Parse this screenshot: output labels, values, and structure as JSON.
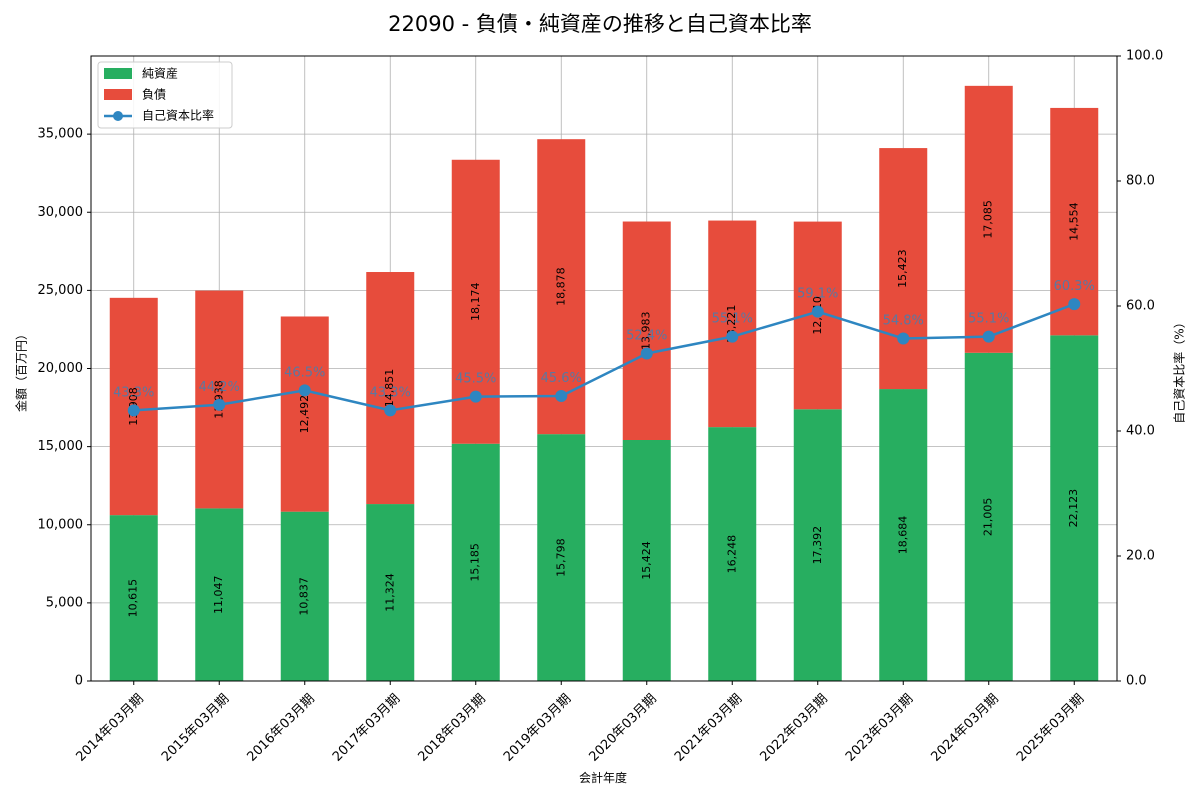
{
  "chart_data": {
    "type": "bar",
    "stacked": true,
    "title": "22090 - 負債・純資産の推移と自己資本比率",
    "xlabel": "会計年度",
    "ylabel": "金額（百万円）",
    "y2label": "自己資本比率（%）",
    "ylim": [
      0,
      40000
    ],
    "y2lim": [
      0,
      100
    ],
    "yticks": [
      0,
      5000,
      10000,
      15000,
      20000,
      25000,
      30000,
      35000
    ],
    "ytick_labels": [
      "0",
      "5,000",
      "10,000",
      "15,000",
      "20,000",
      "25,000",
      "30,000",
      "35,000"
    ],
    "y2ticks": [
      0,
      20,
      40,
      60,
      80,
      100
    ],
    "y2tick_labels": [
      "0.0",
      "20.0",
      "40.0",
      "60.0",
      "80.0",
      "100.0"
    ],
    "grid": true,
    "legend_position": "top-left",
    "categories": [
      "2014年03月期",
      "2015年03月期",
      "2016年03月期",
      "2017年03月期",
      "2018年03月期",
      "2019年03月期",
      "2020年03月期",
      "2021年03月期",
      "2022年03月期",
      "2023年03月期",
      "2024年03月期",
      "2025年03月期"
    ],
    "series": [
      {
        "name": "純資産",
        "kind": "bar",
        "color": "#27ae60",
        "values": [
          10615,
          11047,
          10837,
          11324,
          15185,
          15798,
          15424,
          16248,
          17392,
          18684,
          21005,
          22123
        ],
        "labels": [
          "10,615",
          "11,047",
          "10,837",
          "11,324",
          "15,185",
          "15,798",
          "15,424",
          "16,248",
          "17,392",
          "18,684",
          "21,005",
          "22,123"
        ]
      },
      {
        "name": "負債",
        "kind": "bar",
        "color": "#e74c3c",
        "values": [
          13908,
          13938,
          12492,
          14851,
          18174,
          18878,
          13983,
          13221,
          12010,
          15423,
          17085,
          14554
        ],
        "labels": [
          "13,908",
          "13,938",
          "12,492",
          "14,851",
          "18,174",
          "18,878",
          "13,983",
          "13,221",
          "12,010",
          "15,423",
          "17,085",
          "14,554"
        ]
      },
      {
        "name": "自己資本比率",
        "kind": "line",
        "axis": "right",
        "color": "#2e86c1",
        "values": [
          43.3,
          44.2,
          46.5,
          43.3,
          45.5,
          45.6,
          52.4,
          55.1,
          59.1,
          54.8,
          55.1,
          60.3
        ],
        "labels": [
          "43.3%",
          "44.2%",
          "46.5%",
          "43.3%",
          "45.5%",
          "45.6%",
          "52.4%",
          "55.1%",
          "59.1%",
          "54.8%",
          "55.1%",
          "60.3%"
        ]
      }
    ]
  }
}
